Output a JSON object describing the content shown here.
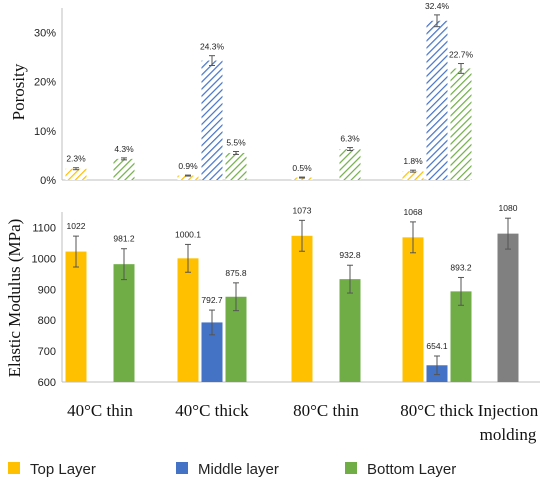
{
  "colors": {
    "top": "#FFC000",
    "middle": "#4472C4",
    "bottom": "#70AD47",
    "injection": "#808080",
    "axis": "#BFBFBF",
    "error": "#555555"
  },
  "chart_data": [
    {
      "type": "bar",
      "pattern": "hatched",
      "ylabel": "Porosity",
      "ylim": [
        0,
        35
      ],
      "yticks": [
        "0%",
        "10%",
        "20%",
        "30%"
      ],
      "categories": [
        "40°C thin",
        "40°C thick",
        "80°C thin",
        "80°C thick"
      ],
      "series": [
        {
          "name": "Top Layer",
          "values": [
            2.3,
            0.9,
            0.5,
            1.8
          ],
          "errors": [
            0.2,
            0.1,
            0.1,
            0.2
          ],
          "labels": [
            "2.3%",
            "0.9%",
            "0.5%",
            "1.8%"
          ]
        },
        {
          "name": "Middle layer",
          "values": [
            null,
            24.3,
            null,
            32.4
          ],
          "errors": [
            null,
            1.0,
            null,
            1.2
          ],
          "labels": [
            null,
            "24.3%",
            null,
            "32.4%"
          ]
        },
        {
          "name": "Bottom Layer",
          "values": [
            4.3,
            5.5,
            6.3,
            22.7
          ],
          "errors": [
            0.2,
            0.3,
            0.3,
            1.0
          ],
          "labels": [
            "4.3%",
            "5.5%",
            "6.3%",
            "22.7%"
          ]
        }
      ]
    },
    {
      "type": "bar",
      "ylabel": "Elastic Modulus (MPa)",
      "ylim": [
        600,
        1150
      ],
      "yticks": [
        "600",
        "700",
        "800",
        "900",
        "1000",
        "1100"
      ],
      "categories": [
        "40°C thin",
        "40°C thick",
        "80°C thin",
        "80°C thick",
        "Injection molding"
      ],
      "series": [
        {
          "name": "Top Layer",
          "values": [
            1022,
            1000.1,
            1073,
            1068,
            null
          ],
          "errors": [
            50,
            45,
            50,
            50,
            null
          ],
          "labels": [
            "1022",
            "1000.1",
            "1073",
            "1068",
            null
          ]
        },
        {
          "name": "Middle layer",
          "values": [
            null,
            792.7,
            null,
            654.1,
            null
          ],
          "errors": [
            null,
            40,
            null,
            30,
            null
          ],
          "labels": [
            null,
            "792.7",
            null,
            "654.1",
            null
          ]
        },
        {
          "name": "Bottom Layer",
          "values": [
            981.2,
            875.8,
            932.8,
            893.2,
            null
          ],
          "errors": [
            50,
            45,
            45,
            45,
            null
          ],
          "labels": [
            "981.2",
            "875.8",
            "932.8",
            "893.2",
            null
          ]
        },
        {
          "name": "Injection molding",
          "values": [
            null,
            null,
            null,
            null,
            1080
          ],
          "errors": [
            null,
            null,
            null,
            null,
            50
          ],
          "labels": [
            null,
            null,
            null,
            null,
            "1080"
          ]
        }
      ]
    }
  ],
  "legend": [
    {
      "key": "top",
      "label": "Top Layer"
    },
    {
      "key": "middle",
      "label": "Middle layer"
    },
    {
      "key": "bottom",
      "label": "Bottom Layer"
    }
  ]
}
